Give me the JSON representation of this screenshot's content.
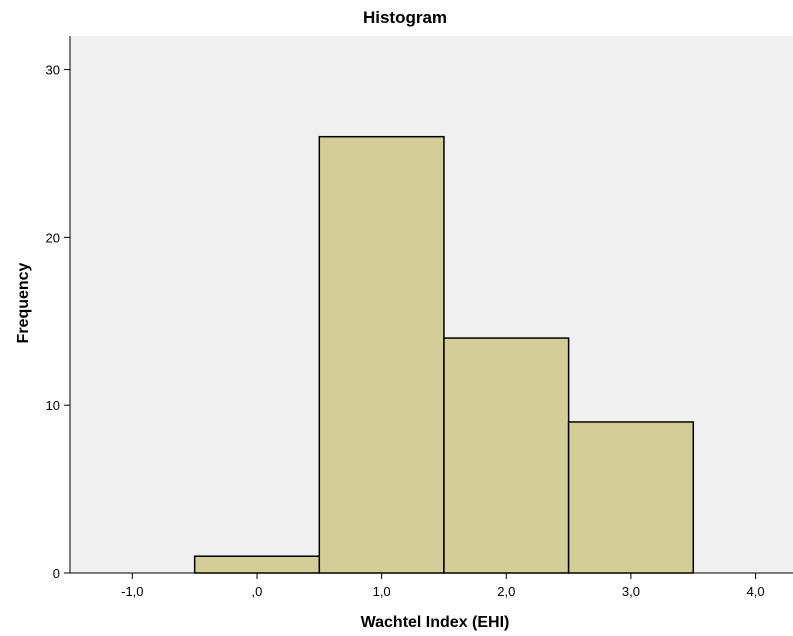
{
  "chart_data": {
    "type": "bar",
    "title": "Histogram",
    "xlabel": "Wachtel Index (EHI)",
    "ylabel": "Frequency",
    "bins": [
      {
        "from": -0.5,
        "to": 0.5,
        "count": 1
      },
      {
        "from": 0.5,
        "to": 1.5,
        "count": 26
      },
      {
        "from": 1.5,
        "to": 2.5,
        "count": 14
      },
      {
        "from": 2.5,
        "to": 3.5,
        "count": 9
      }
    ],
    "xlim": [
      -1.5,
      4.3
    ],
    "ylim": [
      0,
      32
    ],
    "x_ticks": [
      -1,
      0,
      1,
      2,
      3,
      4
    ],
    "x_tick_labels": [
      "-1,0",
      ",0",
      "1,0",
      "2,0",
      "3,0",
      "4,0"
    ],
    "y_ticks": [
      0,
      10,
      20,
      30
    ],
    "y_tick_labels": [
      "0",
      "10",
      "20",
      "30"
    ],
    "grid": false,
    "legend": "none",
    "colors": {
      "plot_background": "#f0f0f0",
      "bar_fill": "#d3ce98",
      "bar_stroke": "#000000",
      "axis": "#000000"
    }
  }
}
